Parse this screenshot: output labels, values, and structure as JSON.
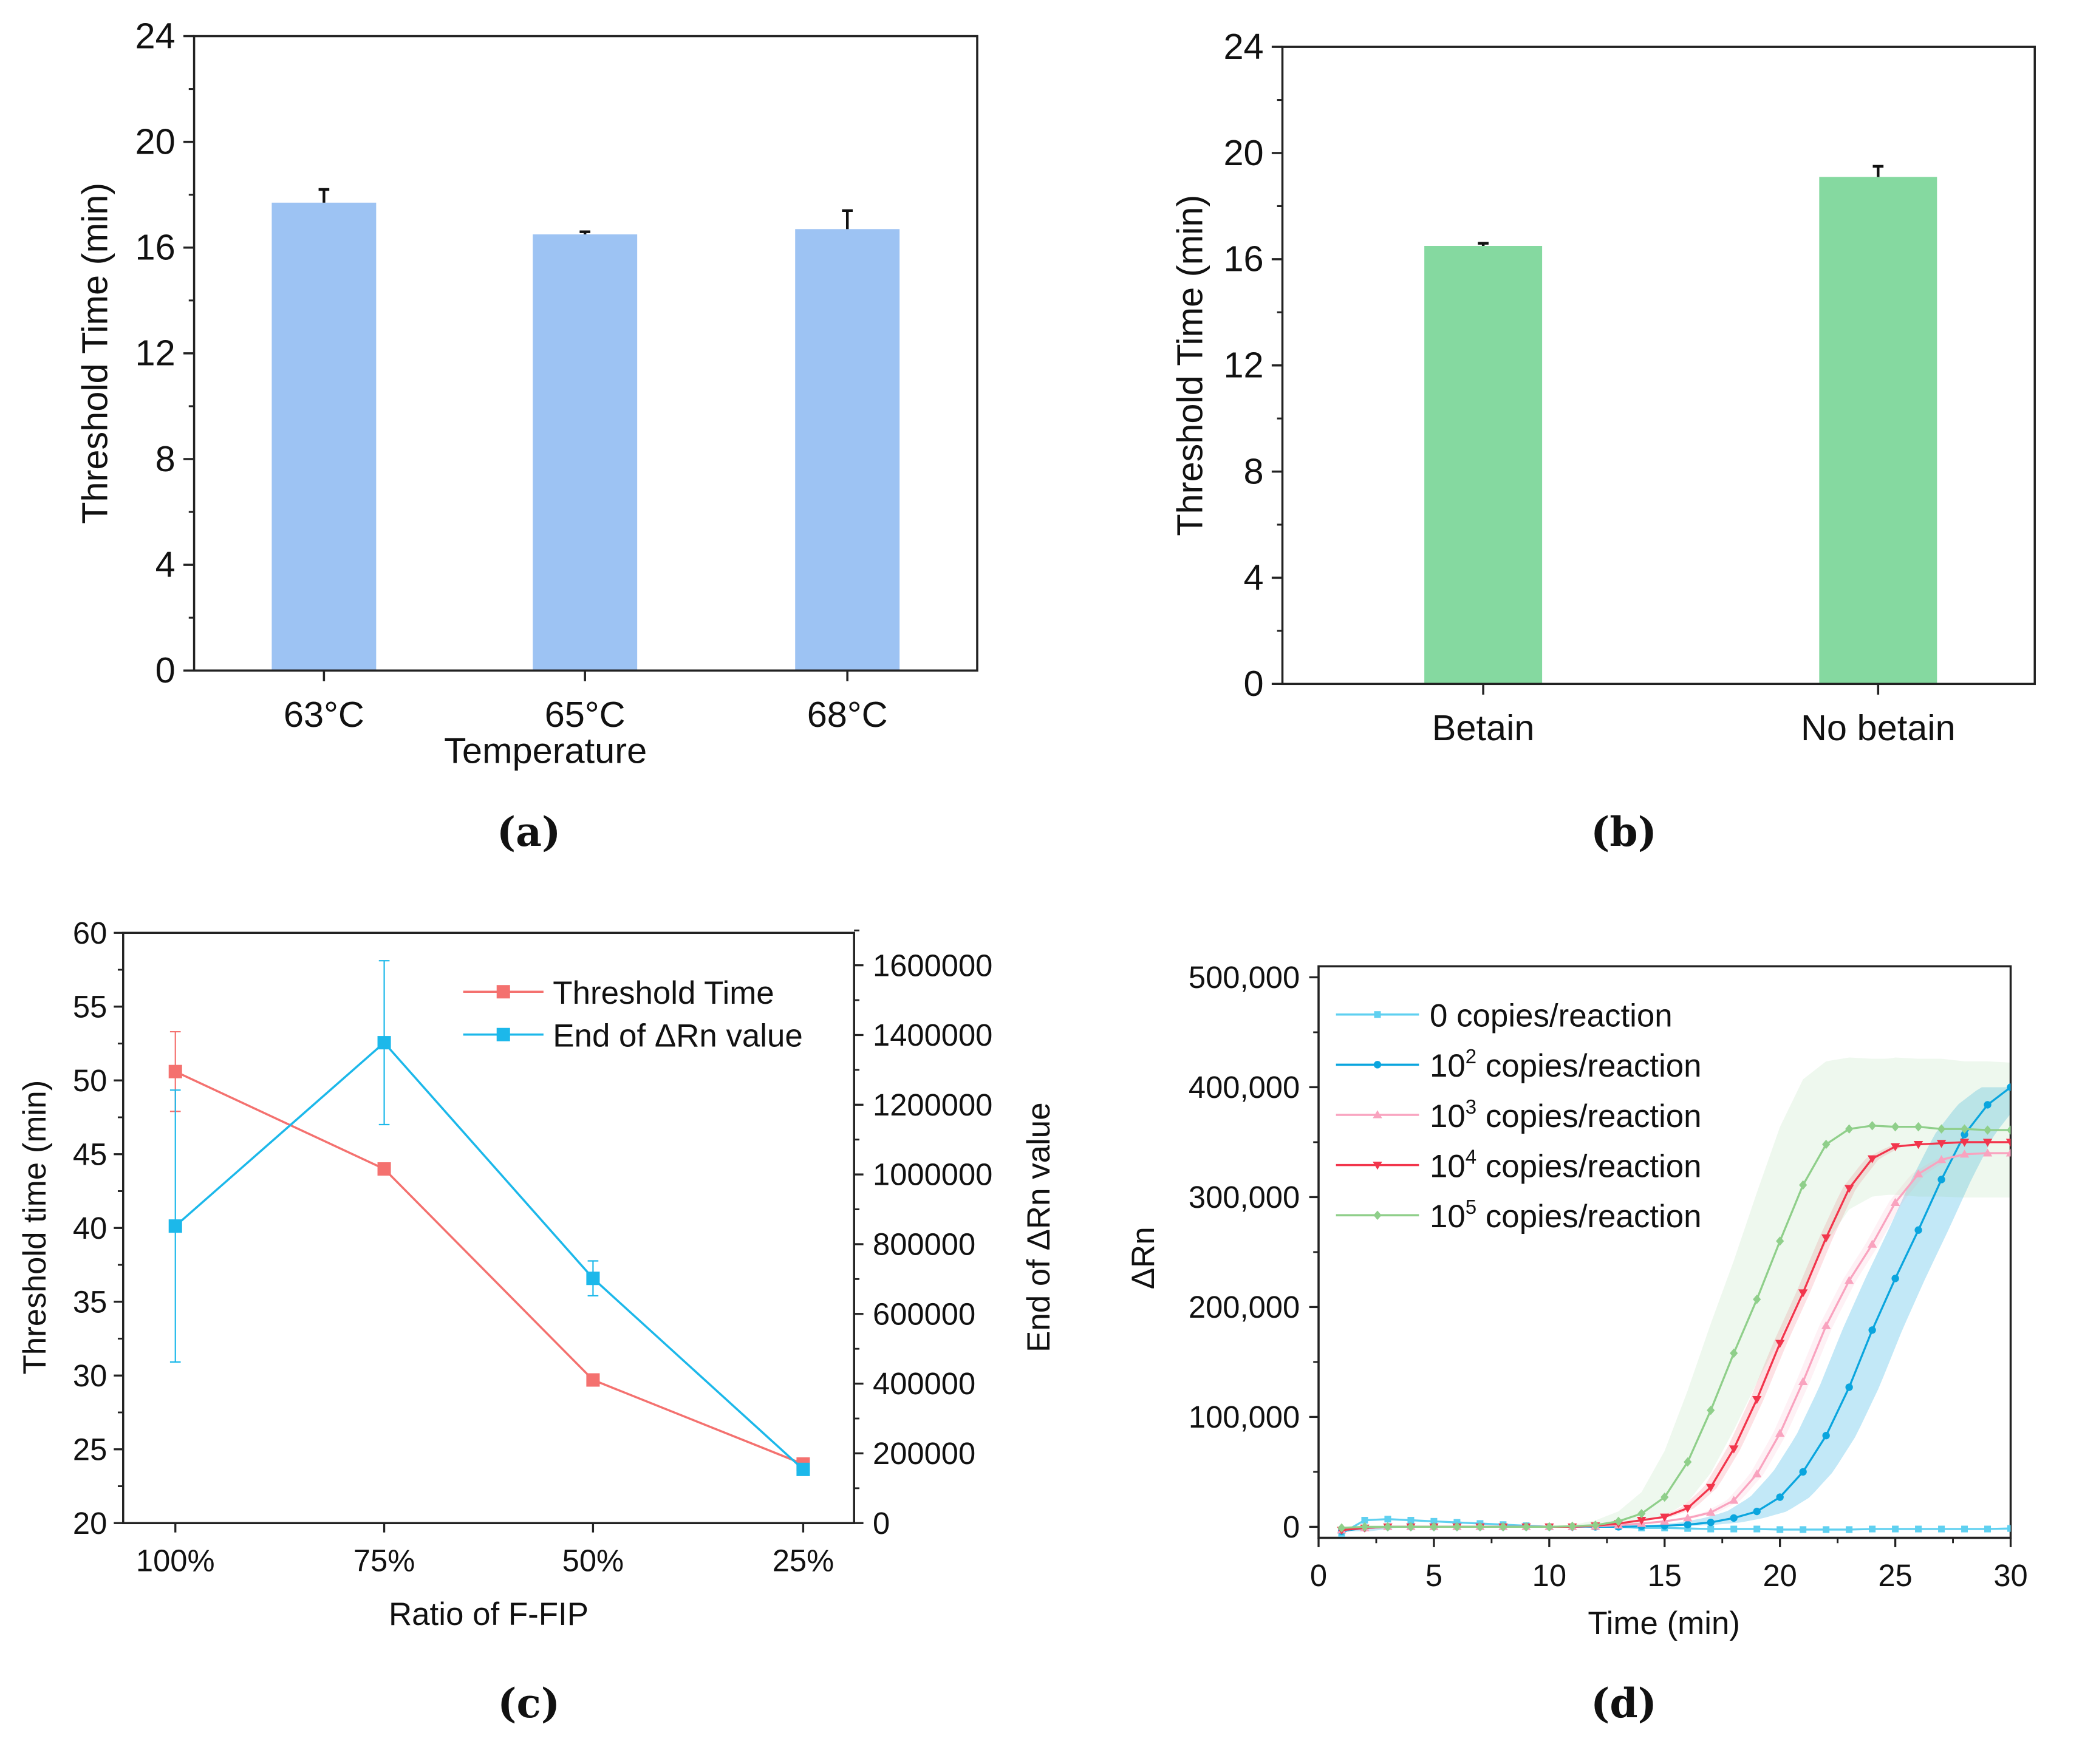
{
  "chart_data": [
    {
      "panel": "(a)",
      "type": "bar",
      "categories": [
        "63°C",
        "65°C",
        "68°C"
      ],
      "values": [
        17.7,
        16.5,
        16.7
      ],
      "errors": [
        0.5,
        0.1,
        0.7
      ],
      "xlabel": "Temperature",
      "ylabel": "Threshold Time (min)",
      "ylim": [
        0,
        24
      ],
      "yticks": [
        "0",
        "4",
        "8",
        "12",
        "16",
        "20",
        "24"
      ],
      "ytick_values": [
        0,
        4,
        8,
        12,
        16,
        20,
        24
      ],
      "color": "#9dc3f3",
      "grid": false
    },
    {
      "panel": "(b)",
      "type": "bar",
      "categories": [
        "Betain",
        "No betain"
      ],
      "values": [
        16.5,
        19.1
      ],
      "errors": [
        0.1,
        0.4
      ],
      "xlabel": "",
      "ylabel": "Threshold Time (min)",
      "ylim": [
        0,
        24
      ],
      "yticks": [
        "0",
        "4",
        "8",
        "12",
        "16",
        "20",
        "24"
      ],
      "ytick_values": [
        0,
        4,
        8,
        12,
        16,
        20,
        24
      ],
      "color": "#85d9a0",
      "grid": false
    },
    {
      "panel": "(c)",
      "type": "line",
      "categories": [
        "100%",
        "75%",
        "50%",
        "25%"
      ],
      "xlabel": "Ratio of F-FIP",
      "ylabel": "Threshold time (min)",
      "ylabel_right": "End of ΔRn value",
      "ylim": [
        20,
        60
      ],
      "ylim_right": [
        0,
        1693000
      ],
      "yticks": [
        "20",
        "25",
        "30",
        "35",
        "40",
        "45",
        "50",
        "55",
        "60"
      ],
      "ytick_values": [
        20,
        25,
        30,
        35,
        40,
        45,
        50,
        55,
        60
      ],
      "yticks_right": [
        "0",
        "200000",
        "400000",
        "600000",
        "800000",
        "1000000",
        "1200000",
        "1400000",
        "1600000"
      ],
      "ytick_values_right": [
        0,
        200000,
        400000,
        600000,
        800000,
        1000000,
        1200000,
        1400000,
        1600000
      ],
      "legend_position": "top-right",
      "series": [
        {
          "name": "Threshold Time",
          "axis": "left",
          "color": "#f4716f",
          "values": [
            50.6,
            44.0,
            29.7,
            24.0
          ],
          "errors": [
            2.7,
            0,
            0,
            0.4
          ]
        },
        {
          "name": "End of ΔRn value",
          "axis": "right",
          "color": "#1cb8ea",
          "values": [
            852000,
            1378000,
            702000,
            154000
          ],
          "errors": [
            390000,
            235000,
            50000,
            0
          ]
        }
      ]
    },
    {
      "panel": "(d)",
      "type": "line",
      "xlabel": "Time (min)",
      "ylabel": "ΔRn",
      "xlim": [
        0,
        30
      ],
      "ylim": [
        -10000,
        510000
      ],
      "xticks": [
        "0",
        "5",
        "10",
        "15",
        "20",
        "25",
        "30"
      ],
      "xtick_values": [
        0,
        5,
        10,
        15,
        20,
        25,
        30
      ],
      "yticks": [
        "0",
        "100,000",
        "200,000",
        "300,000",
        "400,000",
        "500,000"
      ],
      "ytick_values": [
        0,
        100000,
        200000,
        300000,
        400000,
        500000
      ],
      "legend_position": "top-left",
      "x": [
        1,
        2,
        3,
        4,
        5,
        6,
        7,
        8,
        9,
        10,
        11,
        12,
        13,
        14,
        15,
        16,
        17,
        18,
        19,
        20,
        21,
        22,
        23,
        24,
        25,
        26,
        27,
        28,
        29,
        30
      ],
      "series": [
        {
          "name": "0 copies/reaction",
          "base": "0",
          "exp": "",
          "suffix": " copies/reaction",
          "color": "#5fd0f0",
          "marker": "square",
          "band_shift": 0,
          "values": [
            -6000,
            6000,
            7000,
            6000,
            5000,
            4000,
            3000,
            2000,
            1000,
            0,
            0,
            0,
            0,
            -1000,
            -1000,
            -1500,
            -2000,
            -2000,
            -2000,
            -2500,
            -2500,
            -2500,
            -2500,
            -2000,
            -2000,
            -2000,
            -2000,
            -2000,
            -2000,
            -1500
          ]
        },
        {
          "name": "10^2 copies/reaction",
          "base": "10",
          "exp": "2",
          "suffix": " copies/reaction",
          "color": "#0aa5de",
          "marker": "circle",
          "band_shift": 1.3,
          "values": [
            -4000,
            -1000,
            0,
            0,
            0,
            0,
            0,
            0,
            0,
            0,
            0,
            0,
            0,
            500,
            1000,
            2000,
            4000,
            8000,
            14000,
            27000,
            50000,
            83000,
            127000,
            179000,
            226000,
            270000,
            316000,
            357000,
            384000,
            400000
          ]
        },
        {
          "name": "10^3 copies/reaction",
          "base": "10",
          "exp": "3",
          "suffix": " copies/reaction",
          "color": "#f9a3bf",
          "marker": "triangle-up",
          "band_shift": 0.3,
          "values": [
            -3000,
            -1000,
            0,
            0,
            0,
            0,
            0,
            0,
            0,
            0,
            0,
            500,
            1500,
            3000,
            5000,
            8000,
            13000,
            24000,
            48000,
            85000,
            132000,
            183000,
            224000,
            257000,
            295000,
            321000,
            334000,
            339000,
            340000,
            340000
          ]
        },
        {
          "name": "10^4 copies/reaction",
          "base": "10",
          "exp": "4",
          "suffix": " copies/reaction",
          "color": "#f2354c",
          "marker": "triangle-down",
          "band_shift": 0.3,
          "values": [
            -3000,
            -1000,
            0,
            0,
            0,
            0,
            0,
            0,
            0,
            0,
            0,
            1000,
            3000,
            6000,
            9000,
            17000,
            36000,
            71000,
            116000,
            167000,
            213000,
            263000,
            308000,
            335000,
            346000,
            348000,
            349000,
            350000,
            350000,
            350000
          ]
        },
        {
          "name": "10^5 copies/reaction",
          "base": "10",
          "exp": "5",
          "suffix": " copies/reaction",
          "color": "#8fcf8a",
          "marker": "diamond",
          "band_shift": 1.0,
          "values": [
            -1000,
            0,
            0,
            0,
            0,
            0,
            0,
            0,
            0,
            0,
            500,
            1500,
            5000,
            12000,
            27000,
            59000,
            106000,
            158000,
            207000,
            260000,
            311000,
            348000,
            362000,
            365000,
            364000,
            364000,
            362000,
            362000,
            361000,
            361000
          ]
        }
      ]
    }
  ],
  "captions": [
    "(a)",
    "(b)",
    "(c)",
    "(d)"
  ]
}
